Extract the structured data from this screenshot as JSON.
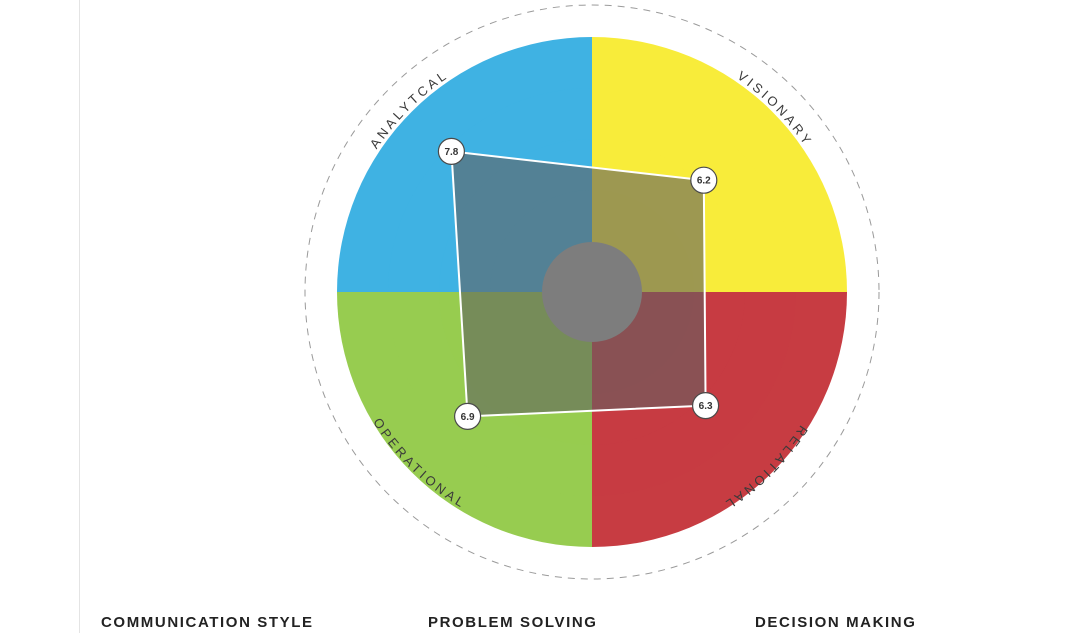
{
  "chart_data": {
    "type": "radar",
    "scale": {
      "min": 0,
      "max": 10
    },
    "quadrants": [
      {
        "name": "ANALYTCAL",
        "value": 7.8,
        "value_label": "7.8",
        "color": "#3fb2e3"
      },
      {
        "name": "VISIONARY",
        "value": 6.2,
        "value_label": "6.2",
        "color": "#f8ec3a"
      },
      {
        "name": "RELATIONAL",
        "value": 6.3,
        "value_label": "6.3",
        "color": "#c73c42"
      },
      {
        "name": "OPERATIONAL",
        "value": 6.9,
        "value_label": "6.9",
        "color": "#97cc50"
      }
    ],
    "polygon_fill": "#606060",
    "center_color": "#a7a7a7",
    "grid": true,
    "legend": "none"
  },
  "sections": {
    "communication": "COMMUNICATION STYLE",
    "problem": "PROBLEM SOLVING",
    "decision": "DECISION MAKING"
  }
}
